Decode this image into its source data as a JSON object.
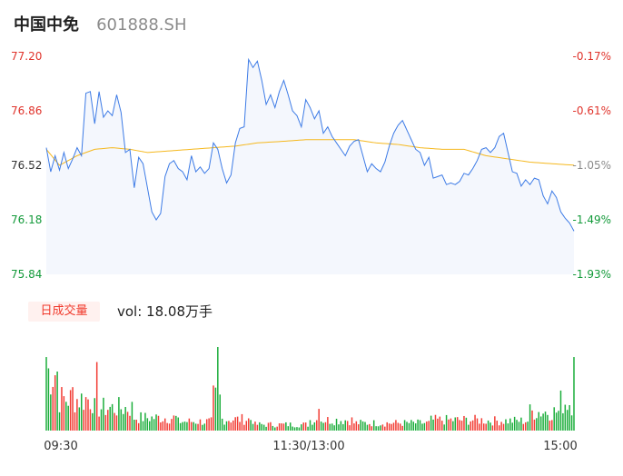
{
  "header": {
    "name": "中国中免",
    "code": "601888.SH"
  },
  "volume_panel": {
    "tab_label": "日成交量",
    "readout": "vol: 18.08万手"
  },
  "colors": {
    "price_line": "#3d7be6",
    "avg_line": "#f5b81e",
    "up": "#f23c34",
    "down": "#1aad3a",
    "area": "#f4f7fd",
    "axis_text": "#333333",
    "pct_up_text": "#e0342c",
    "pct_down_text": "#139a3a",
    "pct_mid_text": "#8c8c8c"
  },
  "chart_data": [
    {
      "type": "line",
      "price_ticks": [
        "77.20",
        "76.86",
        "76.52",
        "76.18",
        "75.84"
      ],
      "pct_ticks": [
        "-0.17%",
        "-0.61%",
        "-1.05%",
        "-1.49%",
        "-1.93%"
      ],
      "ylim": [
        75.84,
        77.2
      ],
      "x_count": 241,
      "price_keyframes": [
        [
          0,
          76.63
        ],
        [
          2,
          76.48
        ],
        [
          4,
          76.58
        ],
        [
          6,
          76.49
        ],
        [
          8,
          76.6
        ],
        [
          10,
          76.5
        ],
        [
          12,
          76.56
        ],
        [
          14,
          76.63
        ],
        [
          16,
          76.58
        ],
        [
          18,
          76.97
        ],
        [
          20,
          76.98
        ],
        [
          22,
          76.78
        ],
        [
          24,
          76.98
        ],
        [
          26,
          76.82
        ],
        [
          28,
          76.86
        ],
        [
          30,
          76.83
        ],
        [
          32,
          76.96
        ],
        [
          34,
          76.85
        ],
        [
          36,
          76.6
        ],
        [
          38,
          76.62
        ],
        [
          40,
          76.38
        ],
        [
          42,
          76.57
        ],
        [
          44,
          76.53
        ],
        [
          46,
          76.38
        ],
        [
          48,
          76.23
        ],
        [
          50,
          76.18
        ],
        [
          52,
          76.22
        ],
        [
          54,
          76.45
        ],
        [
          56,
          76.53
        ],
        [
          58,
          76.55
        ],
        [
          60,
          76.5
        ],
        [
          62,
          76.48
        ],
        [
          64,
          76.43
        ],
        [
          66,
          76.58
        ],
        [
          68,
          76.48
        ],
        [
          70,
          76.51
        ],
        [
          72,
          76.47
        ],
        [
          74,
          76.5
        ],
        [
          76,
          76.66
        ],
        [
          78,
          76.62
        ],
        [
          80,
          76.5
        ],
        [
          82,
          76.41
        ],
        [
          84,
          76.46
        ],
        [
          86,
          76.66
        ],
        [
          88,
          76.75
        ],
        [
          90,
          76.76
        ],
        [
          92,
          77.18
        ],
        [
          94,
          77.13
        ],
        [
          96,
          77.17
        ],
        [
          98,
          77.05
        ],
        [
          100,
          76.9
        ],
        [
          102,
          76.96
        ],
        [
          104,
          76.88
        ],
        [
          106,
          76.98
        ],
        [
          108,
          77.05
        ],
        [
          110,
          76.96
        ],
        [
          112,
          76.86
        ],
        [
          114,
          76.83
        ],
        [
          116,
          76.76
        ],
        [
          118,
          76.93
        ],
        [
          120,
          76.88
        ],
        [
          122,
          76.81
        ],
        [
          124,
          76.86
        ],
        [
          126,
          76.72
        ],
        [
          128,
          76.76
        ],
        [
          130,
          76.7
        ],
        [
          132,
          76.66
        ],
        [
          134,
          76.62
        ],
        [
          136,
          76.58
        ],
        [
          138,
          76.64
        ],
        [
          140,
          76.67
        ],
        [
          142,
          76.68
        ],
        [
          144,
          76.58
        ],
        [
          146,
          76.48
        ],
        [
          148,
          76.53
        ],
        [
          150,
          76.5
        ],
        [
          152,
          76.48
        ],
        [
          154,
          76.54
        ],
        [
          156,
          76.64
        ],
        [
          158,
          76.72
        ],
        [
          160,
          76.77
        ],
        [
          162,
          76.8
        ],
        [
          164,
          76.74
        ],
        [
          166,
          76.68
        ],
        [
          168,
          76.62
        ],
        [
          170,
          76.6
        ],
        [
          172,
          76.52
        ],
        [
          174,
          76.57
        ],
        [
          176,
          76.44
        ],
        [
          178,
          76.45
        ],
        [
          180,
          76.46
        ],
        [
          182,
          76.4
        ],
        [
          184,
          76.41
        ],
        [
          186,
          76.4
        ],
        [
          188,
          76.42
        ],
        [
          190,
          76.47
        ],
        [
          192,
          76.46
        ],
        [
          194,
          76.5
        ],
        [
          196,
          76.55
        ],
        [
          198,
          76.62
        ],
        [
          200,
          76.63
        ],
        [
          202,
          76.6
        ],
        [
          204,
          76.63
        ],
        [
          206,
          76.7
        ],
        [
          208,
          76.72
        ],
        [
          210,
          76.6
        ],
        [
          212,
          76.48
        ],
        [
          214,
          76.47
        ],
        [
          216,
          76.39
        ],
        [
          218,
          76.43
        ],
        [
          220,
          76.4
        ],
        [
          222,
          76.44
        ],
        [
          224,
          76.43
        ],
        [
          226,
          76.33
        ],
        [
          228,
          76.28
        ],
        [
          230,
          76.36
        ],
        [
          232,
          76.32
        ],
        [
          234,
          76.23
        ],
        [
          236,
          76.19
        ],
        [
          238,
          76.16
        ],
        [
          240,
          76.11
        ]
      ],
      "avg_keyframes": [
        [
          0,
          76.62
        ],
        [
          6,
          76.52
        ],
        [
          14,
          76.58
        ],
        [
          22,
          76.62
        ],
        [
          30,
          76.63
        ],
        [
          38,
          76.62
        ],
        [
          46,
          76.6
        ],
        [
          56,
          76.61
        ],
        [
          66,
          76.62
        ],
        [
          76,
          76.63
        ],
        [
          86,
          76.64
        ],
        [
          96,
          76.66
        ],
        [
          108,
          76.67
        ],
        [
          118,
          76.68
        ],
        [
          130,
          76.68
        ],
        [
          140,
          76.68
        ],
        [
          150,
          76.66
        ],
        [
          160,
          76.65
        ],
        [
          170,
          76.63
        ],
        [
          180,
          76.62
        ],
        [
          190,
          76.62
        ],
        [
          200,
          76.58
        ],
        [
          210,
          76.56
        ],
        [
          220,
          76.54
        ],
        [
          230,
          76.53
        ],
        [
          241,
          76.52
        ]
      ],
      "x_ticks": [
        "09:30",
        "11:30/13:00",
        "15:00"
      ]
    },
    {
      "type": "bar",
      "series_colors": [
        "up",
        "down"
      ],
      "volume_pattern": "seeded"
    }
  ]
}
